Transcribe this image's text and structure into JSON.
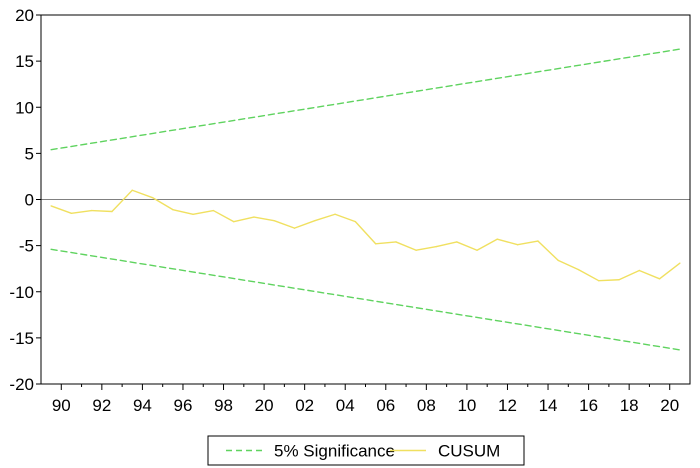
{
  "chart_data": {
    "type": "line",
    "x_tick_labels": [
      "90",
      "92",
      "94",
      "96",
      "98",
      "20",
      "02",
      "04",
      "06",
      "08",
      "10",
      "12",
      "14",
      "16",
      "18",
      "20"
    ],
    "y_ticks": [
      20,
      15,
      10,
      5,
      0,
      -5,
      -10,
      -15,
      -20
    ],
    "ylim": [
      -20,
      20
    ],
    "grid": false,
    "zero_line": true,
    "legend_position": "bottom-center",
    "colors": {
      "significance": "#5fd35f",
      "cusum": "#f0e060",
      "zero_line": "#808080",
      "axes": "#000000"
    },
    "series": [
      {
        "name": "5% Significance",
        "style": "dashed",
        "x": [
          1989.5,
          2020.5
        ],
        "values": [
          5.4,
          16.3
        ]
      },
      {
        "name": "5% Significance",
        "style": "dashed",
        "x": [
          1989.5,
          2020.5
        ],
        "values": [
          -5.4,
          -16.3
        ]
      },
      {
        "name": "CUSUM",
        "style": "solid",
        "x": [
          1989.5,
          1990.5,
          1991.5,
          1992.5,
          1993.5,
          1994.5,
          1995.5,
          1996.5,
          1997.5,
          1998.5,
          1999.5,
          2000.5,
          2001.5,
          2002.5,
          2003.5,
          2004.5,
          2005.5,
          2006.5,
          2007.5,
          2008.5,
          2009.5,
          2010.5,
          2011.5,
          2012.5,
          2013.5,
          2014.5,
          2015.5,
          2016.5,
          2017.5,
          2018.5,
          2019.5,
          2020.5
        ],
        "values": [
          -0.7,
          -1.5,
          -1.2,
          -1.3,
          1.0,
          0.2,
          -1.1,
          -1.6,
          -1.2,
          -2.4,
          -1.9,
          -2.3,
          -3.1,
          -2.3,
          -1.6,
          -2.4,
          -4.8,
          -4.6,
          -5.5,
          -5.1,
          -4.6,
          -5.5,
          -4.3,
          -4.9,
          -4.5,
          -6.6,
          -7.6,
          -8.8,
          -8.7,
          -7.7,
          -8.6,
          -6.9
        ]
      }
    ],
    "legend": [
      {
        "label": "5% Significance",
        "style": "dashed",
        "color": "#5fd35f"
      },
      {
        "label": "CUSUM",
        "style": "solid",
        "color": "#f0e060"
      }
    ]
  }
}
